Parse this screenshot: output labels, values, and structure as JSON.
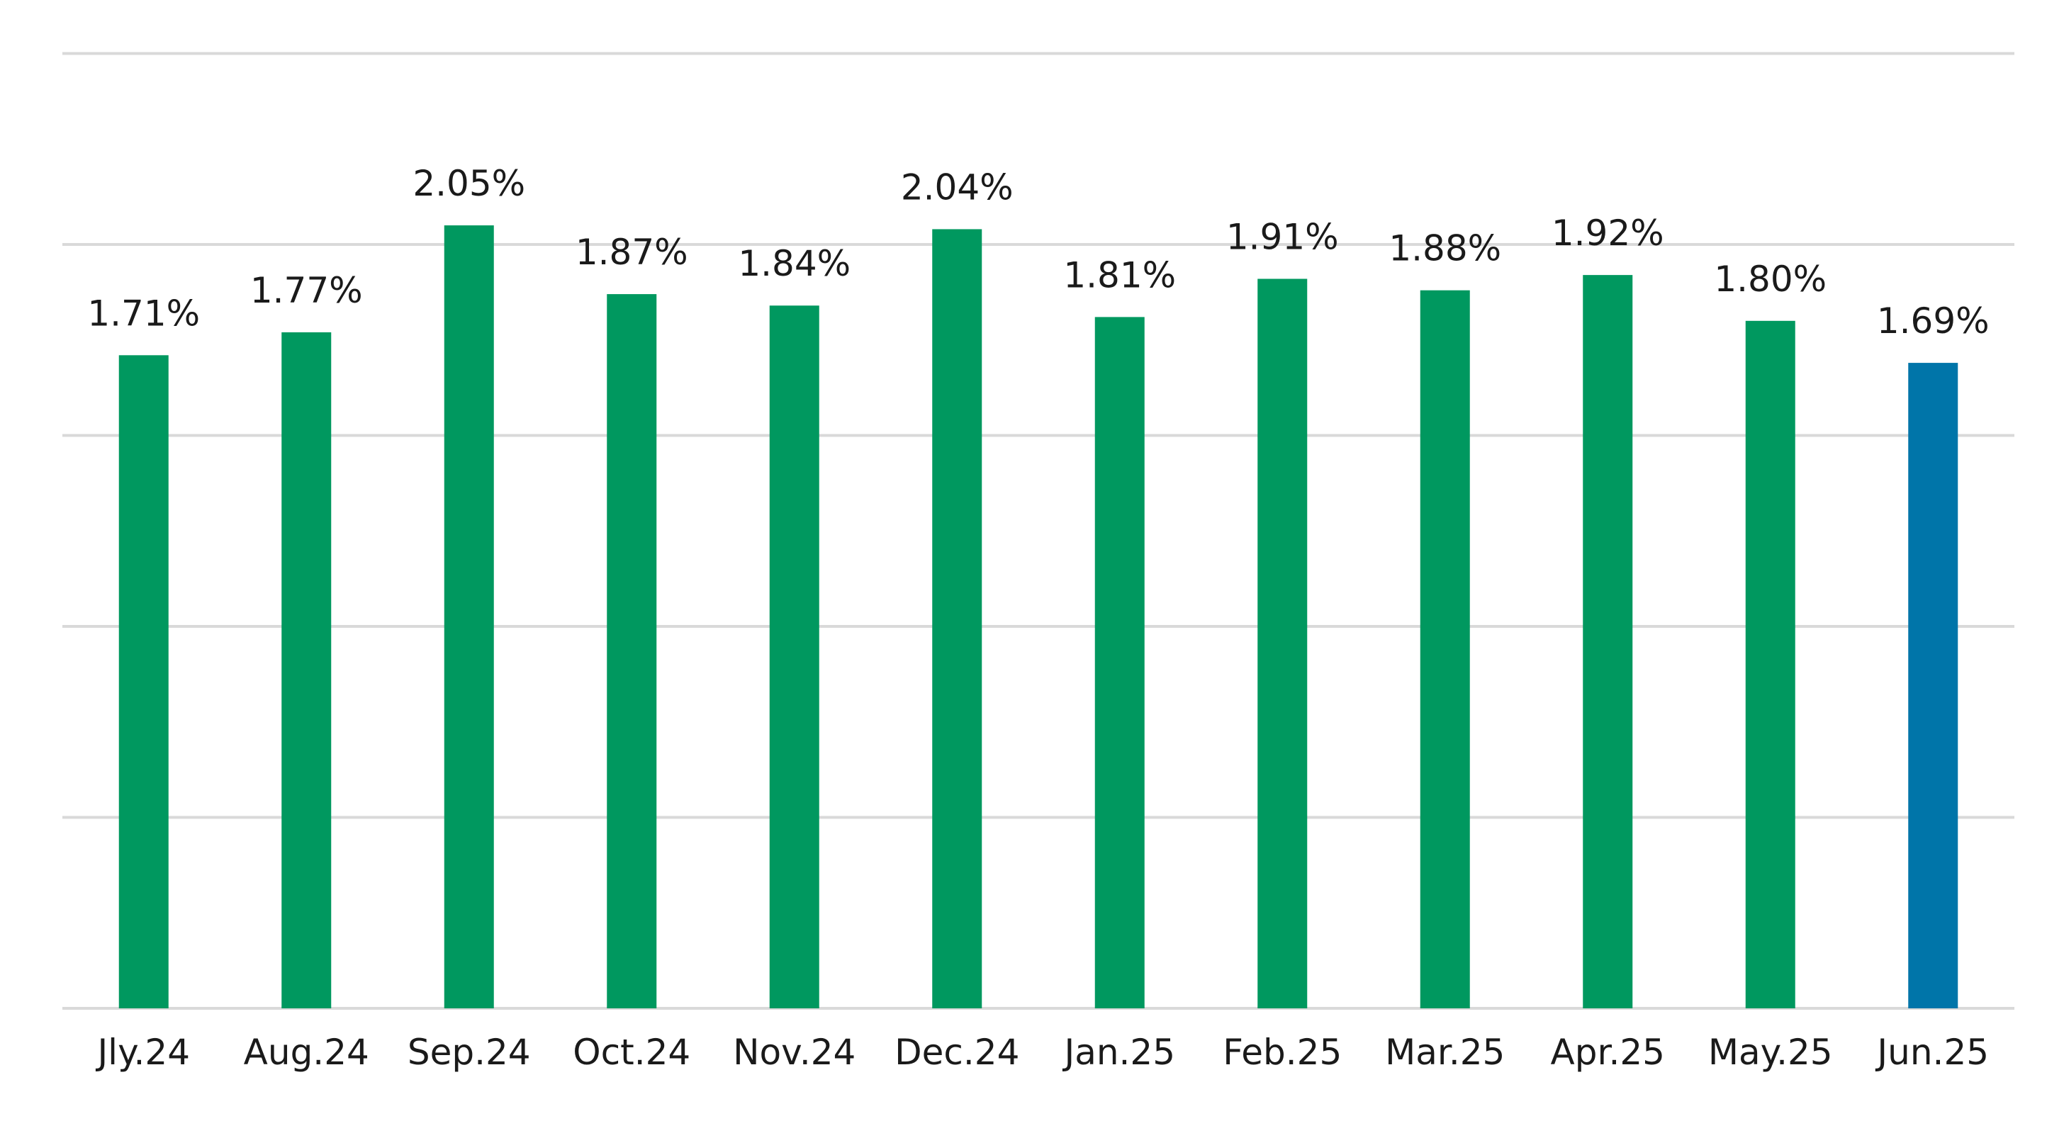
{
  "chart_data": {
    "type": "bar",
    "title": "",
    "xlabel": "",
    "ylabel": "",
    "categories": [
      "Jly.24",
      "Aug.24",
      "Sep.24",
      "Oct.24",
      "Nov.24",
      "Dec.24",
      "Jan.25",
      "Feb.25",
      "Mar.25",
      "Apr.25",
      "May.25",
      "Jun.25"
    ],
    "values": [
      1.71,
      1.77,
      2.05,
      1.87,
      1.84,
      2.04,
      1.81,
      1.91,
      1.88,
      1.92,
      1.8,
      1.69
    ],
    "data_labels": [
      "1.71%",
      "1.77%",
      "2.05%",
      "1.87%",
      "1.84%",
      "2.04%",
      "1.81%",
      "1.91%",
      "1.88%",
      "1.92%",
      "1.80%",
      "1.69%"
    ],
    "ylim": [
      0,
      2.5
    ],
    "gridline_values": [
      0.5,
      1.0,
      1.5,
      2.0,
      2.5
    ],
    "y_tick_labels_shown": false,
    "grid": true,
    "legend": "none",
    "bar_color": "#00985F",
    "highlight_color": "#0075A9",
    "highlight_index": 11,
    "gridline_color": "#d9d9d9"
  }
}
